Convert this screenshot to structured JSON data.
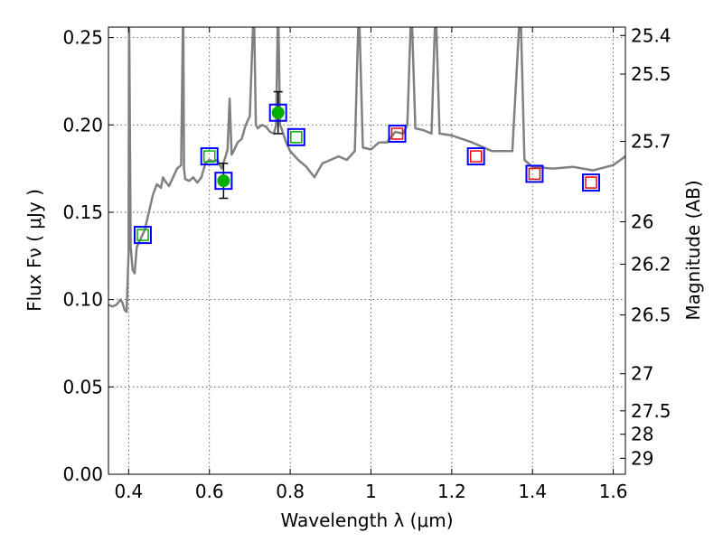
{
  "chart_data": {
    "type": "scatter",
    "xlabel": "Wavelength  λ (μm)",
    "ylabel": "Flux  Fν  ( μJy )",
    "y2label": "Magnitude (AB)",
    "xlim": [
      0.35,
      1.63
    ],
    "ylim": [
      0.0,
      0.256
    ],
    "grid": true,
    "x_ticks": [
      0.4,
      0.6,
      0.8,
      1.0,
      1.2,
      1.4,
      1.6
    ],
    "x_tick_labels": [
      "0.4",
      "0.6",
      "0.8",
      "1",
      "1.2",
      "1.4",
      "1.6"
    ],
    "y_ticks": [
      0.0,
      0.05,
      0.1,
      0.15,
      0.2,
      0.25
    ],
    "y_tick_labels": [
      "0.00",
      "0.05",
      "0.10",
      "0.15",
      "0.20",
      "0.25"
    ],
    "y2_ticks": [
      25.4,
      25.5,
      25.7,
      26,
      26.2,
      26.5,
      27,
      27.5,
      28,
      29
    ],
    "y2_tick_labels": [
      "25.4",
      "25.5",
      "25.7",
      "26",
      "26.2",
      "26.5",
      "27",
      "27.5",
      "28",
      "29"
    ],
    "colors": {
      "spectrum": "#808080",
      "box": "#0000ff",
      "green_symbol": "#00b000",
      "red_symbol": "#ff0000",
      "errorbar": "#000000"
    },
    "spectrum": {
      "x": [
        0.35,
        0.36,
        0.37,
        0.38,
        0.385,
        0.39,
        0.395,
        0.4,
        0.401,
        0.405,
        0.41,
        0.415,
        0.42,
        0.43,
        0.44,
        0.45,
        0.46,
        0.47,
        0.48,
        0.485,
        0.49,
        0.5,
        0.51,
        0.52,
        0.53,
        0.535,
        0.537,
        0.54,
        0.55,
        0.56,
        0.57,
        0.58,
        0.59,
        0.6,
        0.61,
        0.62,
        0.63,
        0.64,
        0.645,
        0.65,
        0.655,
        0.66,
        0.67,
        0.68,
        0.69,
        0.7,
        0.71,
        0.715,
        0.72,
        0.73,
        0.74,
        0.75,
        0.76,
        0.765,
        0.77,
        0.775,
        0.78,
        0.79,
        0.8,
        0.82,
        0.84,
        0.86,
        0.88,
        0.9,
        0.92,
        0.94,
        0.96,
        0.97,
        0.98,
        1.0,
        1.02,
        1.04,
        1.06,
        1.08,
        1.09,
        1.1,
        1.11,
        1.13,
        1.15,
        1.16,
        1.17,
        1.2,
        1.25,
        1.3,
        1.35,
        1.37,
        1.38,
        1.4,
        1.45,
        1.5,
        1.55,
        1.6,
        1.63
      ],
      "y": [
        0.097,
        0.096,
        0.097,
        0.1,
        0.098,
        0.094,
        0.093,
        0.127,
        0.27,
        0.13,
        0.117,
        0.115,
        0.13,
        0.135,
        0.14,
        0.15,
        0.16,
        0.166,
        0.164,
        0.17,
        0.168,
        0.165,
        0.17,
        0.175,
        0.177,
        0.27,
        0.175,
        0.169,
        0.168,
        0.17,
        0.167,
        0.17,
        0.178,
        0.18,
        0.179,
        0.18,
        0.175,
        0.182,
        0.186,
        0.215,
        0.183,
        0.185,
        0.19,
        0.192,
        0.2,
        0.205,
        0.27,
        0.2,
        0.198,
        0.2,
        0.199,
        0.196,
        0.195,
        0.2,
        0.27,
        0.2,
        0.197,
        0.19,
        0.185,
        0.18,
        0.176,
        0.17,
        0.178,
        0.18,
        0.182,
        0.18,
        0.185,
        0.27,
        0.187,
        0.186,
        0.19,
        0.19,
        0.196,
        0.195,
        0.2,
        0.27,
        0.198,
        0.197,
        0.195,
        0.27,
        0.195,
        0.194,
        0.19,
        0.185,
        0.185,
        0.27,
        0.18,
        0.176,
        0.175,
        0.176,
        0.174,
        0.177,
        0.182
      ]
    },
    "series": [
      {
        "marker": "box-with-green-square",
        "x": [
          0.435,
          0.6,
          0.815
        ],
        "y": [
          0.137,
          0.182,
          0.193
        ]
      },
      {
        "marker": "box-with-green-circle",
        "x": [
          0.635,
          0.77
        ],
        "y": [
          0.168,
          0.207
        ],
        "yerr": [
          0.01,
          0.012
        ]
      },
      {
        "marker": "box-with-red-square",
        "x": [
          1.065,
          1.26,
          1.405,
          1.545
        ],
        "y": [
          0.195,
          0.182,
          0.172,
          0.167
        ]
      }
    ]
  }
}
